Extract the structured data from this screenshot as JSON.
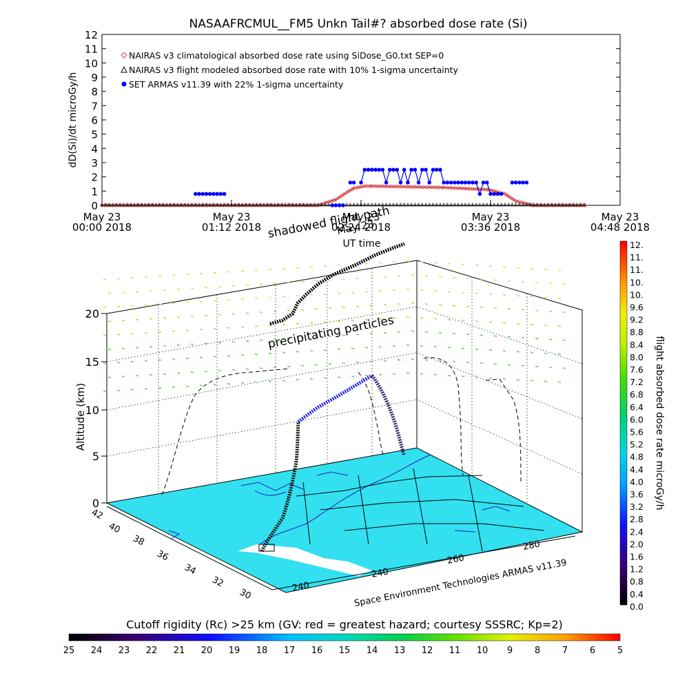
{
  "chart_data": [
    {
      "type": "line",
      "title": "NASAAFRCMUL__FM5 Unkn Tail#? absorbed dose rate (Si)",
      "xlabel": "UT time",
      "ylabel": "dD(Si)/dt microGy/h",
      "ylim": [
        0,
        12
      ],
      "yticks": [
        "0",
        "1",
        "2",
        "3",
        "4",
        "5",
        "6",
        "7",
        "8",
        "9",
        "10",
        "11",
        "12"
      ],
      "xlim_minutes": [
        0,
        288
      ],
      "xticks": [
        {
          "line1": "May 23",
          "line2": "00:00 2018",
          "minute": 0
        },
        {
          "line1": "May 23",
          "line2": "01:12 2018",
          "minute": 72
        },
        {
          "line1": "May 23",
          "line2": "02:24 2018",
          "minute": 144
        },
        {
          "line1": "May 23",
          "line2": "03:36 2018",
          "minute": 216
        },
        {
          "line1": "May 23",
          "line2": "04:48 2018",
          "minute": 288
        }
      ],
      "legend_position": "top-left",
      "legend": [
        {
          "text": "NAIRAS v3 climatological absorbed dose rate using SiDose_G0.txt SEP=0",
          "color": "#d04040",
          "marker": "diamond"
        },
        {
          "text": "NAIRAS v3 flight modeled absorbed dose rate with 10% 1-sigma uncertainty",
          "color": "#000000",
          "marker": "triangle"
        },
        {
          "text": "SET ARMAS v11.39 with 22% 1-sigma uncertainty",
          "color": "#0000ff",
          "marker": "circle"
        }
      ],
      "series": [
        {
          "name": "NAIRAS v3 climatological absorbed dose rate using SiDose_G0.txt SEP=0",
          "x_minutes": [
            0,
            120,
            130,
            136,
            140,
            146,
            150,
            190,
            215,
            224,
            230,
            240,
            270
          ],
          "y": [
            0,
            0,
            0.4,
            0.9,
            1.2,
            1.35,
            1.35,
            1.25,
            1.1,
            0.8,
            0.3,
            0,
            0
          ]
        },
        {
          "name": "NAIRAS v3 flight modeled absorbed dose rate with 10% 1-sigma uncertainty",
          "x_minutes": [
            0,
            60,
            120,
            180,
            240,
            270
          ],
          "y": [
            0,
            0,
            0,
            0,
            0,
            0
          ]
        },
        {
          "name": "SET ARMAS v11.39 with 22% 1-sigma uncertainty",
          "x_minutes": [
            52,
            54,
            56,
            58,
            60,
            62,
            64,
            66,
            68,
            128,
            130,
            132,
            134,
            138,
            140,
            144,
            146,
            148,
            150,
            152,
            154,
            156,
            158,
            160,
            162,
            164,
            166,
            168,
            170,
            172,
            174,
            176,
            178,
            180,
            182,
            184,
            186,
            188,
            190,
            192,
            194,
            196,
            198,
            200,
            202,
            204,
            206,
            208,
            210,
            212,
            214,
            216,
            218,
            220,
            222,
            228,
            230,
            232,
            234,
            236
          ],
          "y": [
            0.8,
            0.8,
            0.8,
            0.8,
            0.8,
            0.8,
            0.8,
            0.8,
            0.8,
            0,
            0,
            0,
            0,
            1.6,
            1.6,
            1.6,
            2.5,
            2.5,
            2.5,
            2.5,
            2.5,
            2.5,
            1.6,
            2.5,
            2.5,
            2.5,
            1.6,
            2.5,
            1.6,
            2.5,
            2.5,
            1.6,
            2.5,
            2.5,
            1.6,
            2.5,
            2.5,
            2.5,
            1.6,
            1.6,
            1.6,
            1.6,
            1.6,
            1.6,
            1.6,
            1.6,
            1.6,
            1.6,
            0.8,
            1.6,
            1.6,
            0.8,
            0.8,
            0.8,
            0.8,
            1.6,
            1.6,
            1.6,
            1.6,
            1.6
          ]
        }
      ]
    },
    {
      "type": "scatter",
      "title": "",
      "ylabel": "Altitude (km)",
      "zticks": [
        "0",
        "5",
        "10",
        "15",
        "20"
      ],
      "lat_ticks": [
        "42",
        "40",
        "38",
        "36",
        "34",
        "32",
        "30"
      ],
      "lon_ticks": [
        "240",
        "240",
        "260",
        "280"
      ],
      "annotations": [
        "shadowed flight path",
        "precipitating particles",
        "May 23"
      ],
      "credit": "Space Environment Technologies ARMAS v11.39",
      "colorbar_label": "flight absorbed dose rate microGy/h",
      "colorbar_ticks": [
        "12.",
        "11.",
        "11.",
        "10.",
        "10.",
        "9.6",
        "9.2",
        "8.8",
        "8.4",
        "8.0",
        "7.6",
        "7.2",
        "6.8",
        "6.4",
        "6.0",
        "5.6",
        "5.2",
        "4.8",
        "4.4",
        "4.0",
        "3.6",
        "3.2",
        "2.8",
        "2.4",
        "2.0",
        "1.6",
        "1.2",
        "0.8",
        "0.4",
        "0.0"
      ],
      "rigidity_title": "Cutoff rigidity (Rc) >25 km (GV: red = greatest hazard; courtesy SSSRC; Kp=2)",
      "rigidity_ticks": [
        "25",
        "24",
        "23",
        "22",
        "21",
        "20",
        "19",
        "18",
        "17",
        "16",
        "15",
        "14",
        "13",
        "12",
        "11",
        "10",
        "9",
        "8",
        "7",
        "6",
        "5"
      ]
    }
  ]
}
